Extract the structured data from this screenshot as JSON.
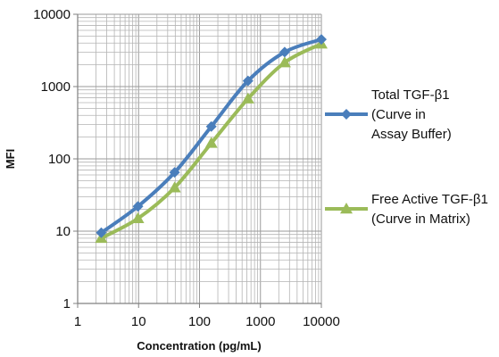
{
  "chart_data": {
    "type": "line",
    "title": "",
    "xlabel": "Concentration (pg/mL)",
    "ylabel": "MFI",
    "x_scale": "log",
    "y_scale": "log",
    "xlim": [
      1,
      10000
    ],
    "ylim": [
      1,
      10000
    ],
    "x_ticks": [
      "1",
      "10",
      "100",
      "1000",
      "10000"
    ],
    "y_ticks": [
      "1",
      "10",
      "100",
      "1000",
      "10000"
    ],
    "grid": true,
    "legend_position": "right",
    "series": [
      {
        "name": "Total TGF-β1 (Curve in Assay Buffer)",
        "legend_lines": [
          "Total TGF-β1",
          "(Curve in",
          "Assay Buffer)"
        ],
        "color": "#4a7ebb",
        "marker": "diamond",
        "x": [
          2.44,
          9.77,
          39.06,
          156.25,
          625,
          2500,
          10000
        ],
        "y": [
          9.5,
          22,
          65,
          280,
          1200,
          3000,
          4500
        ]
      },
      {
        "name": "Free Active TGF-β1 (Curve in Matrix)",
        "legend_lines": [
          "Free Active TGF-β1",
          "(Curve in Matrix)"
        ],
        "color": "#9bbb59",
        "marker": "triangle",
        "x": [
          2.44,
          9.77,
          39.06,
          156.25,
          625,
          2500,
          10000
        ],
        "y": [
          8,
          15,
          40,
          165,
          680,
          2150,
          3900
        ]
      }
    ]
  }
}
